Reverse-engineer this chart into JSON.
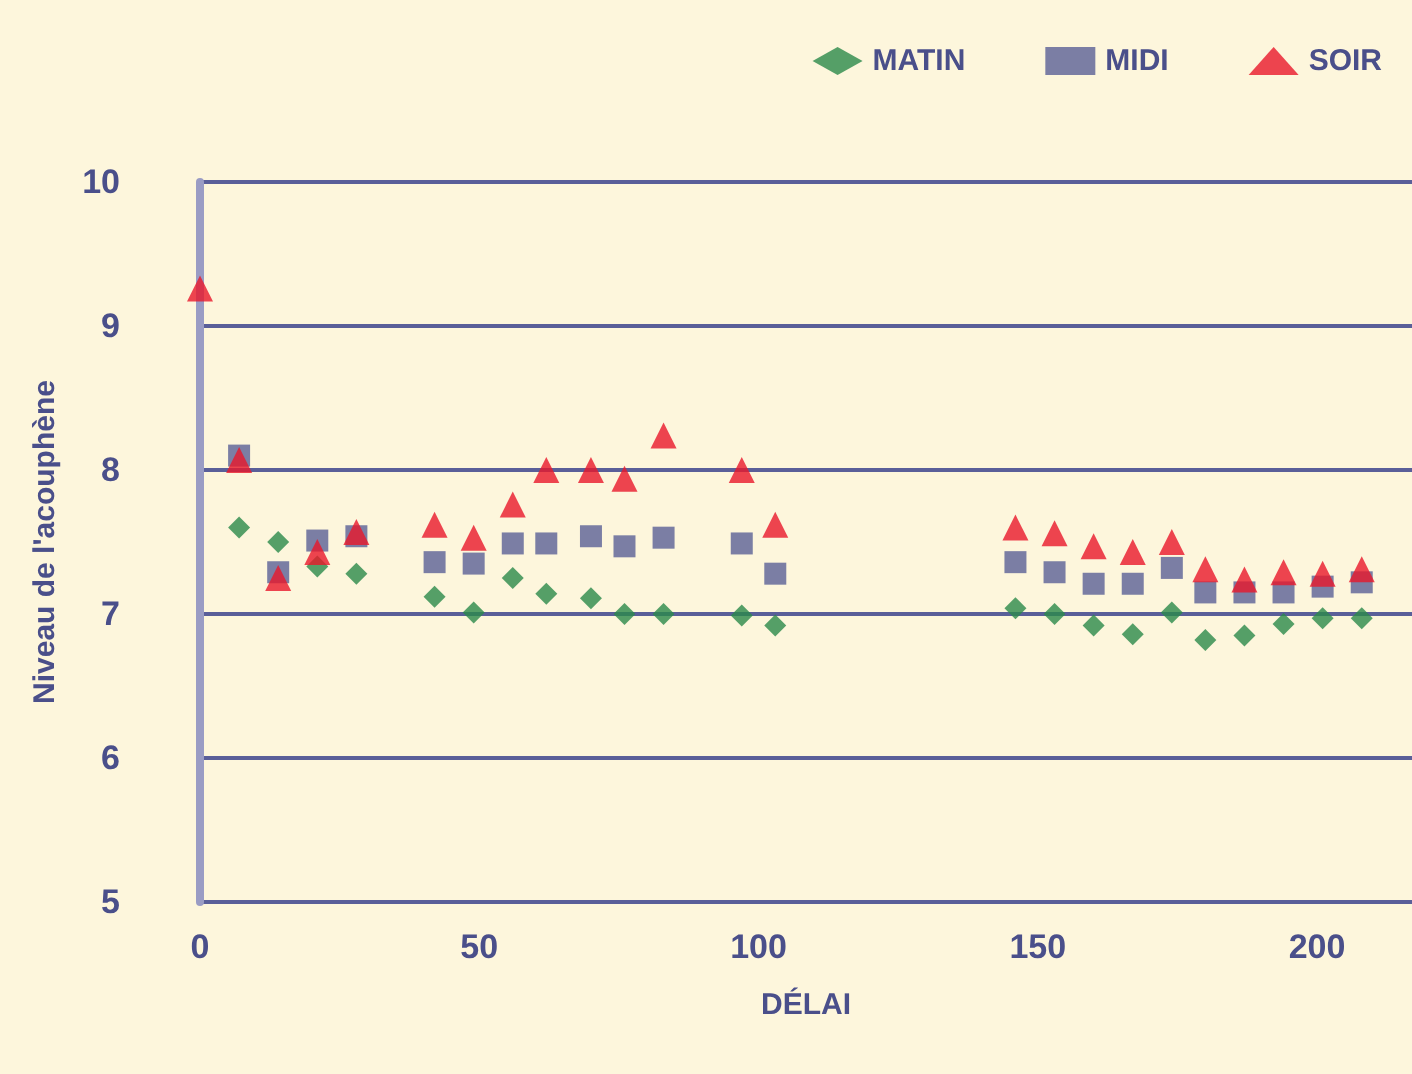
{
  "chart_data": {
    "type": "scatter",
    "xlabel": "DÉLAI",
    "ylabel": "Niveau de l'acouphène",
    "xlim": [
      0,
      217
    ],
    "xticks": [
      0,
      50,
      100,
      150,
      200
    ],
    "ylim": [
      5,
      10
    ],
    "yticks": [
      5,
      6,
      7,
      8,
      9,
      10
    ],
    "grid": "y",
    "legend": "top right",
    "series": [
      {
        "name": "MATIN",
        "color": "#2a8a4a",
        "marker": "diamond",
        "x": [
          7,
          14,
          21,
          28,
          42,
          49,
          56,
          62,
          70,
          76,
          83,
          97,
          103,
          146,
          153,
          160,
          167,
          174,
          180,
          187,
          194,
          201,
          208
        ],
        "values": [
          7.6,
          7.5,
          7.33,
          7.28,
          7.12,
          7.01,
          7.25,
          7.14,
          7.11,
          7.0,
          7.0,
          6.99,
          6.92,
          7.04,
          7.0,
          6.92,
          6.86,
          7.01,
          6.82,
          6.85,
          6.93,
          6.97,
          6.97
        ]
      },
      {
        "name": "MIDI",
        "color": "#5a6096",
        "marker": "square",
        "x": [
          7,
          14,
          21,
          28,
          42,
          49,
          56,
          62,
          70,
          76,
          83,
          97,
          103,
          146,
          153,
          160,
          167,
          174,
          180,
          187,
          194,
          201,
          208
        ],
        "values": [
          8.1,
          7.29,
          7.51,
          7.54,
          7.36,
          7.35,
          7.49,
          7.49,
          7.54,
          7.47,
          7.53,
          7.49,
          7.28,
          7.36,
          7.29,
          7.21,
          7.21,
          7.32,
          7.15,
          7.15,
          7.15,
          7.19,
          7.22
        ]
      },
      {
        "name": "SOIR",
        "color": "#e8182a",
        "marker": "triangle",
        "x": [
          0,
          7,
          14,
          21,
          28,
          42,
          49,
          56,
          62,
          70,
          76,
          83,
          97,
          103,
          146,
          153,
          160,
          167,
          174,
          180,
          187,
          194,
          201,
          208
        ],
        "values": [
          9.26,
          8.07,
          7.25,
          7.43,
          7.57,
          7.62,
          7.53,
          7.76,
          8.0,
          8.0,
          7.94,
          8.24,
          8.0,
          7.62,
          7.6,
          7.56,
          7.47,
          7.43,
          7.5,
          7.31,
          7.24,
          7.29,
          7.28,
          7.31
        ]
      }
    ]
  }
}
